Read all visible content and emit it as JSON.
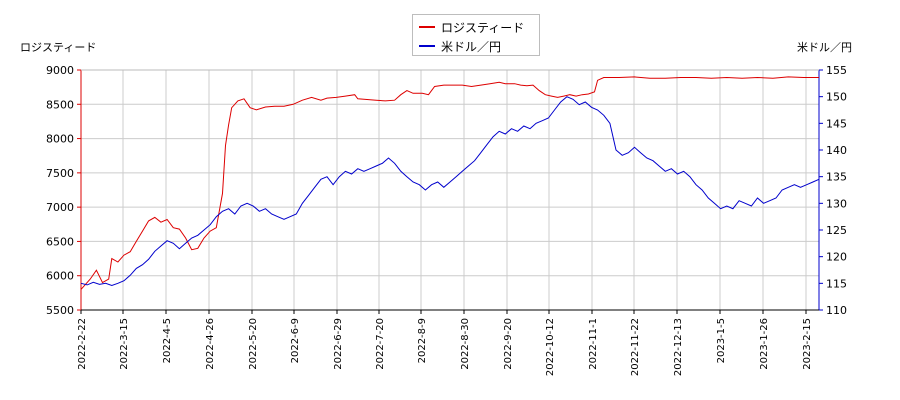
{
  "chart_data": {
    "type": "line",
    "legend_position": "top-center",
    "grid": true,
    "left_axis_label": "ロジスティード",
    "right_axis_label": "米ドル／円",
    "left_ylim": [
      5500,
      9000
    ],
    "right_ylim": [
      110,
      155
    ],
    "left_ticks": [
      "5500",
      "6000",
      "6500",
      "7000",
      "7500",
      "8000",
      "8500",
      "9000"
    ],
    "right_ticks": [
      "110",
      "115",
      "120",
      "125",
      "130",
      "135",
      "140",
      "145",
      "150",
      "155"
    ],
    "x_ticks": [
      "2022-2-22",
      "2022-3-15",
      "2022-4-5",
      "2022-4-26",
      "2022-5-20",
      "2022-6-9",
      "2022-6-29",
      "2022-7-20",
      "2022-8-9",
      "2022-8-30",
      "2022-9-20",
      "2022-10-12",
      "2022-11-1",
      "2022-11-22",
      "2022-12-13",
      "2023-1-5",
      "2023-1-26",
      "2023-2-15"
    ],
    "series": [
      {
        "name": "ロジスティード",
        "axis": "left",
        "color": "#dd0000",
        "points": [
          [
            0,
            5800
          ],
          [
            3,
            5950
          ],
          [
            5,
            6080
          ],
          [
            7,
            5900
          ],
          [
            9,
            5950
          ],
          [
            10,
            6250
          ],
          [
            12,
            6200
          ],
          [
            14,
            6300
          ],
          [
            16,
            6350
          ],
          [
            18,
            6500
          ],
          [
            20,
            6650
          ],
          [
            22,
            6800
          ],
          [
            24,
            6850
          ],
          [
            26,
            6780
          ],
          [
            28,
            6820
          ],
          [
            30,
            6700
          ],
          [
            32,
            6680
          ],
          [
            34,
            6550
          ],
          [
            36,
            6380
          ],
          [
            38,
            6400
          ],
          [
            40,
            6550
          ],
          [
            42,
            6650
          ],
          [
            44,
            6700
          ],
          [
            46,
            7200
          ],
          [
            47,
            7900
          ],
          [
            48,
            8200
          ],
          [
            49,
            8450
          ],
          [
            50,
            8500
          ],
          [
            51,
            8550
          ],
          [
            53,
            8580
          ],
          [
            55,
            8450
          ],
          [
            57,
            8420
          ],
          [
            60,
            8460
          ],
          [
            63,
            8470
          ],
          [
            66,
            8470
          ],
          [
            69,
            8500
          ],
          [
            72,
            8560
          ],
          [
            75,
            8600
          ],
          [
            78,
            8560
          ],
          [
            80,
            8590
          ],
          [
            83,
            8600
          ],
          [
            86,
            8620
          ],
          [
            89,
            8640
          ],
          [
            90,
            8580
          ],
          [
            93,
            8570
          ],
          [
            96,
            8560
          ],
          [
            99,
            8550
          ],
          [
            102,
            8560
          ],
          [
            104,
            8640
          ],
          [
            106,
            8700
          ],
          [
            108,
            8660
          ],
          [
            111,
            8660
          ],
          [
            113,
            8640
          ],
          [
            115,
            8760
          ],
          [
            118,
            8780
          ],
          [
            121,
            8780
          ],
          [
            124,
            8780
          ],
          [
            127,
            8760
          ],
          [
            130,
            8780
          ],
          [
            133,
            8800
          ],
          [
            136,
            8820
          ],
          [
            138,
            8800
          ],
          [
            141,
            8800
          ],
          [
            143,
            8780
          ],
          [
            145,
            8770
          ],
          [
            147,
            8780
          ],
          [
            149,
            8700
          ],
          [
            151,
            8640
          ],
          [
            153,
            8620
          ],
          [
            155,
            8600
          ],
          [
            157,
            8620
          ],
          [
            159,
            8640
          ],
          [
            161,
            8620
          ],
          [
            163,
            8640
          ],
          [
            165,
            8650
          ],
          [
            167,
            8680
          ],
          [
            168,
            8850
          ],
          [
            170,
            8890
          ],
          [
            175,
            8890
          ],
          [
            180,
            8900
          ],
          [
            185,
            8880
          ],
          [
            190,
            8880
          ],
          [
            195,
            8890
          ],
          [
            200,
            8890
          ],
          [
            205,
            8880
          ],
          [
            210,
            8890
          ],
          [
            215,
            8880
          ],
          [
            220,
            8890
          ],
          [
            225,
            8880
          ],
          [
            230,
            8900
          ],
          [
            235,
            8890
          ],
          [
            240,
            8890
          ]
        ]
      },
      {
        "name": "米ドル／円",
        "axis": "right",
        "color": "#0000cc",
        "points": [
          [
            0,
            115.0
          ],
          [
            2,
            114.7
          ],
          [
            4,
            115.2
          ],
          [
            6,
            114.8
          ],
          [
            8,
            115.0
          ],
          [
            10,
            114.6
          ],
          [
            12,
            115.0
          ],
          [
            14,
            115.5
          ],
          [
            16,
            116.5
          ],
          [
            18,
            117.8
          ],
          [
            20,
            118.5
          ],
          [
            22,
            119.5
          ],
          [
            24,
            121.0
          ],
          [
            26,
            122.0
          ],
          [
            28,
            123.0
          ],
          [
            30,
            122.5
          ],
          [
            32,
            121.5
          ],
          [
            34,
            122.5
          ],
          [
            36,
            123.5
          ],
          [
            38,
            124.0
          ],
          [
            40,
            125.0
          ],
          [
            42,
            126.0
          ],
          [
            44,
            127.5
          ],
          [
            46,
            128.5
          ],
          [
            48,
            129.0
          ],
          [
            50,
            128.0
          ],
          [
            52,
            129.5
          ],
          [
            54,
            130.0
          ],
          [
            56,
            129.5
          ],
          [
            58,
            128.5
          ],
          [
            60,
            129.0
          ],
          [
            62,
            128.0
          ],
          [
            64,
            127.5
          ],
          [
            66,
            127.0
          ],
          [
            68,
            127.5
          ],
          [
            70,
            128.0
          ],
          [
            72,
            130.0
          ],
          [
            74,
            131.5
          ],
          [
            76,
            133.0
          ],
          [
            78,
            134.5
          ],
          [
            80,
            135.0
          ],
          [
            82,
            133.5
          ],
          [
            84,
            135.0
          ],
          [
            86,
            136.0
          ],
          [
            88,
            135.5
          ],
          [
            90,
            136.5
          ],
          [
            92,
            136.0
          ],
          [
            94,
            136.5
          ],
          [
            96,
            137.0
          ],
          [
            98,
            137.5
          ],
          [
            100,
            138.5
          ],
          [
            102,
            137.5
          ],
          [
            104,
            136.0
          ],
          [
            106,
            135.0
          ],
          [
            108,
            134.0
          ],
          [
            110,
            133.5
          ],
          [
            112,
            132.5
          ],
          [
            114,
            133.5
          ],
          [
            116,
            134.0
          ],
          [
            118,
            133.0
          ],
          [
            120,
            134.0
          ],
          [
            122,
            135.0
          ],
          [
            124,
            136.0
          ],
          [
            126,
            137.0
          ],
          [
            128,
            138.0
          ],
          [
            130,
            139.5
          ],
          [
            132,
            141.0
          ],
          [
            134,
            142.5
          ],
          [
            136,
            143.5
          ],
          [
            138,
            143.0
          ],
          [
            140,
            144.0
          ],
          [
            142,
            143.5
          ],
          [
            144,
            144.5
          ],
          [
            146,
            144.0
          ],
          [
            148,
            145.0
          ],
          [
            150,
            145.5
          ],
          [
            152,
            146.0
          ],
          [
            154,
            147.5
          ],
          [
            156,
            149.0
          ],
          [
            158,
            150.0
          ],
          [
            160,
            149.5
          ],
          [
            162,
            148.5
          ],
          [
            164,
            149.0
          ],
          [
            166,
            148.0
          ],
          [
            168,
            147.5
          ],
          [
            170,
            146.5
          ],
          [
            172,
            145.0
          ],
          [
            174,
            140.0
          ],
          [
            176,
            139.0
          ],
          [
            178,
            139.5
          ],
          [
            180,
            140.5
          ],
          [
            182,
            139.5
          ],
          [
            184,
            138.5
          ],
          [
            186,
            138.0
          ],
          [
            188,
            137.0
          ],
          [
            190,
            136.0
          ],
          [
            192,
            136.5
          ],
          [
            194,
            135.5
          ],
          [
            196,
            136.0
          ],
          [
            198,
            135.0
          ],
          [
            200,
            133.5
          ],
          [
            202,
            132.5
          ],
          [
            204,
            131.0
          ],
          [
            206,
            130.0
          ],
          [
            208,
            129.0
          ],
          [
            210,
            129.5
          ],
          [
            212,
            129.0
          ],
          [
            214,
            130.5
          ],
          [
            216,
            130.0
          ],
          [
            218,
            129.5
          ],
          [
            220,
            131.0
          ],
          [
            222,
            130.0
          ],
          [
            224,
            130.5
          ],
          [
            226,
            131.0
          ],
          [
            228,
            132.5
          ],
          [
            230,
            133.0
          ],
          [
            232,
            133.5
          ],
          [
            234,
            133.0
          ],
          [
            236,
            133.5
          ],
          [
            238,
            134.0
          ],
          [
            240,
            134.5
          ]
        ]
      }
    ]
  }
}
